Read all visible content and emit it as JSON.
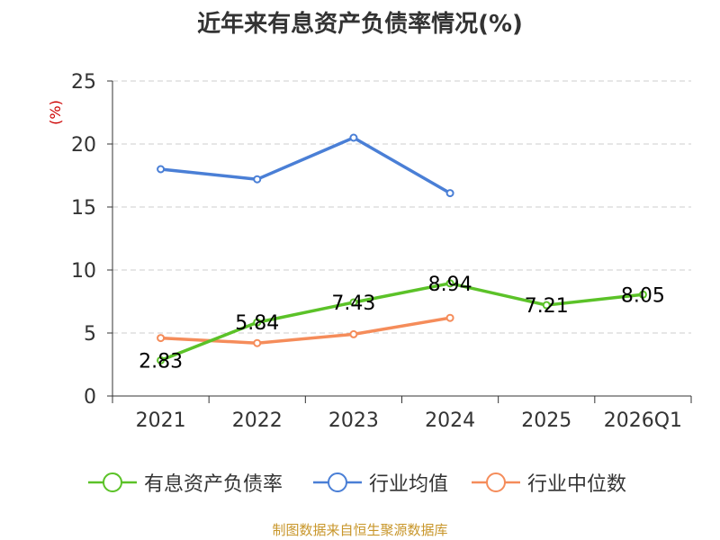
{
  "title": "近年来有息资产负债率情况(%)",
  "source": "制图数据来自恒生聚源数据库",
  "chart_data": {
    "type": "line",
    "title": "近年来有息资产负债率情况(%)",
    "ylabel": "(%)",
    "xlabel": "",
    "categories": [
      "2021",
      "2022",
      "2023",
      "2024",
      "2025",
      "2026Q1"
    ],
    "ylim": [
      0,
      25
    ],
    "yticks": [
      0,
      5,
      10,
      15,
      20,
      25
    ],
    "grid": true,
    "legend_position": "bottom",
    "series": [
      {
        "name": "有息资产负债率",
        "color": "#5bc228",
        "values": [
          2.83,
          5.84,
          7.43,
          8.94,
          7.21,
          8.05
        ],
        "data_labels": [
          "2.83",
          "5.84",
          "7.43",
          "8.94",
          "7.21",
          "8.05"
        ]
      },
      {
        "name": "行业均值",
        "color": "#4a7fd6",
        "values": [
          18.0,
          17.2,
          20.5,
          16.1,
          null,
          null
        ]
      },
      {
        "name": "行业中位数",
        "color": "#f58c5a",
        "values": [
          4.6,
          4.2,
          4.9,
          6.2,
          null,
          null
        ]
      }
    ]
  },
  "colors": {
    "axis": "#333333",
    "grid": "#cccccc",
    "ylabel": "#cc0000"
  }
}
